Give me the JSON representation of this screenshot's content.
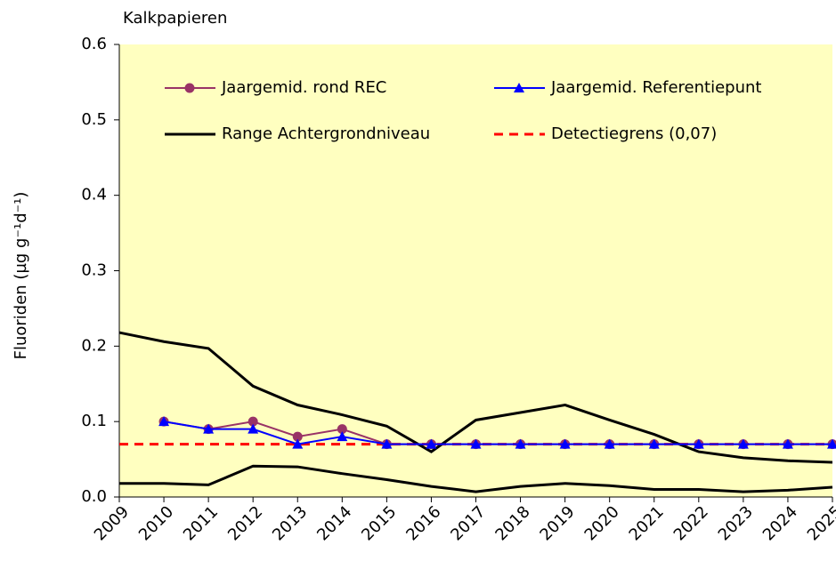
{
  "chart_data": {
    "type": "line",
    "title": "Kalkpapieren",
    "y_label": "Fluoriden (µg g⁻¹d⁻¹)",
    "x": [
      2009,
      2010,
      2011,
      2012,
      2013,
      2014,
      2015,
      2016,
      2017,
      2018,
      2019,
      2020,
      2021,
      2022,
      2023,
      2024,
      2025
    ],
    "xlim": [
      2009,
      2025
    ],
    "xticks": [
      2009,
      2010,
      2011,
      2012,
      2013,
      2014,
      2015,
      2016,
      2017,
      2018,
      2019,
      2020,
      2021,
      2022,
      2023,
      2024,
      2025
    ],
    "ylim": [
      0,
      0.6
    ],
    "yticks": [
      {
        "value": 0,
        "label": "0.0"
      },
      0.1,
      0.2,
      0.3,
      0.4,
      0.5,
      0.6
    ],
    "background": "#ffffc0",
    "series": [
      {
        "name": "Jaargemid. rond REC",
        "color": "#993366",
        "marker": "circle",
        "values": [
          null,
          0.1,
          0.09,
          0.1,
          0.08,
          0.09,
          0.07,
          0.07,
          0.07,
          0.07,
          0.07,
          0.07,
          0.07,
          0.07,
          0.07,
          0.07,
          0.07
        ]
      },
      {
        "name": "Jaargemid. Referentiepunt",
        "color": "#0000ff",
        "marker": "triangle",
        "values": [
          null,
          0.1,
          0.09,
          0.09,
          0.07,
          0.08,
          0.07,
          0.07,
          0.07,
          0.07,
          0.07,
          0.07,
          0.07,
          0.07,
          0.07,
          0.07,
          0.07
        ]
      },
      {
        "name": "Range Achtergrondniveau",
        "color": "#000000",
        "values": [
          0.218,
          0.206,
          0.197,
          0.147,
          0.122,
          0.109,
          0.094,
          0.06,
          0.102,
          0.112,
          0.122,
          0.102,
          0.083,
          0.06,
          0.052,
          0.048,
          0.046
        ]
      },
      {
        "color": "#000000",
        "values": [
          0.018,
          0.018,
          0.016,
          0.041,
          0.04,
          0.031,
          0.023,
          0.014,
          0.007,
          0.014,
          0.018,
          0.015,
          0.01,
          0.01,
          0.007,
          0.009,
          0.013
        ]
      }
    ],
    "reference_line": {
      "name": "Detectiegrens (0,07)",
      "value": 0.07,
      "color": "#ff0000"
    }
  }
}
